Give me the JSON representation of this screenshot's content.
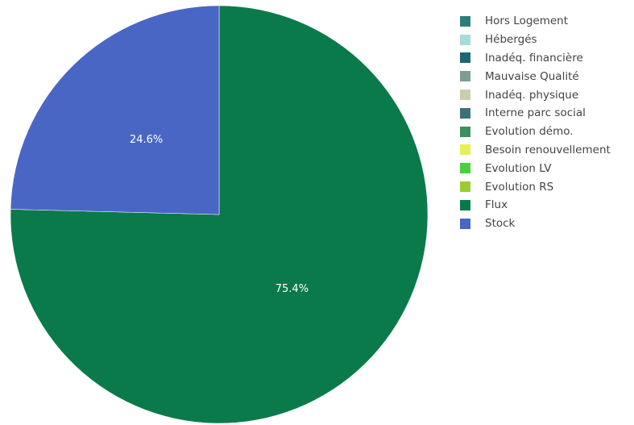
{
  "chart_data": {
    "type": "pie",
    "slices": [
      {
        "name": "Flux",
        "value": 75.4,
        "label": "75.4%",
        "color": "#0b7a4b"
      },
      {
        "name": "Stock",
        "value": 24.6,
        "label": "24.6%",
        "color": "#4a66c4"
      }
    ],
    "legend": [
      {
        "name": "Hors Logement",
        "color": "#2e7d7a"
      },
      {
        "name": "Hébergés",
        "color": "#a6dcdc"
      },
      {
        "name": "Inadéq. financière",
        "color": "#1d6673"
      },
      {
        "name": "Mauvaise Qualité",
        "color": "#7b9e92"
      },
      {
        "name": "Inadéq. physique",
        "color": "#c8cfae"
      },
      {
        "name": "Interne parc social",
        "color": "#3d7078"
      },
      {
        "name": "Evolution démo.",
        "color": "#3f8f5e"
      },
      {
        "name": "Besoin renouvellement",
        "color": "#e6ef55"
      },
      {
        "name": "Evolution LV",
        "color": "#47d33a"
      },
      {
        "name": "Evolution RS",
        "color": "#9ccc2f"
      },
      {
        "name": "Flux",
        "color": "#0b7a4b"
      },
      {
        "name": "Stock",
        "color": "#4a66c4"
      }
    ],
    "legend_position": "right",
    "start_angle": "12 o'clock",
    "direction": "clockwise"
  }
}
